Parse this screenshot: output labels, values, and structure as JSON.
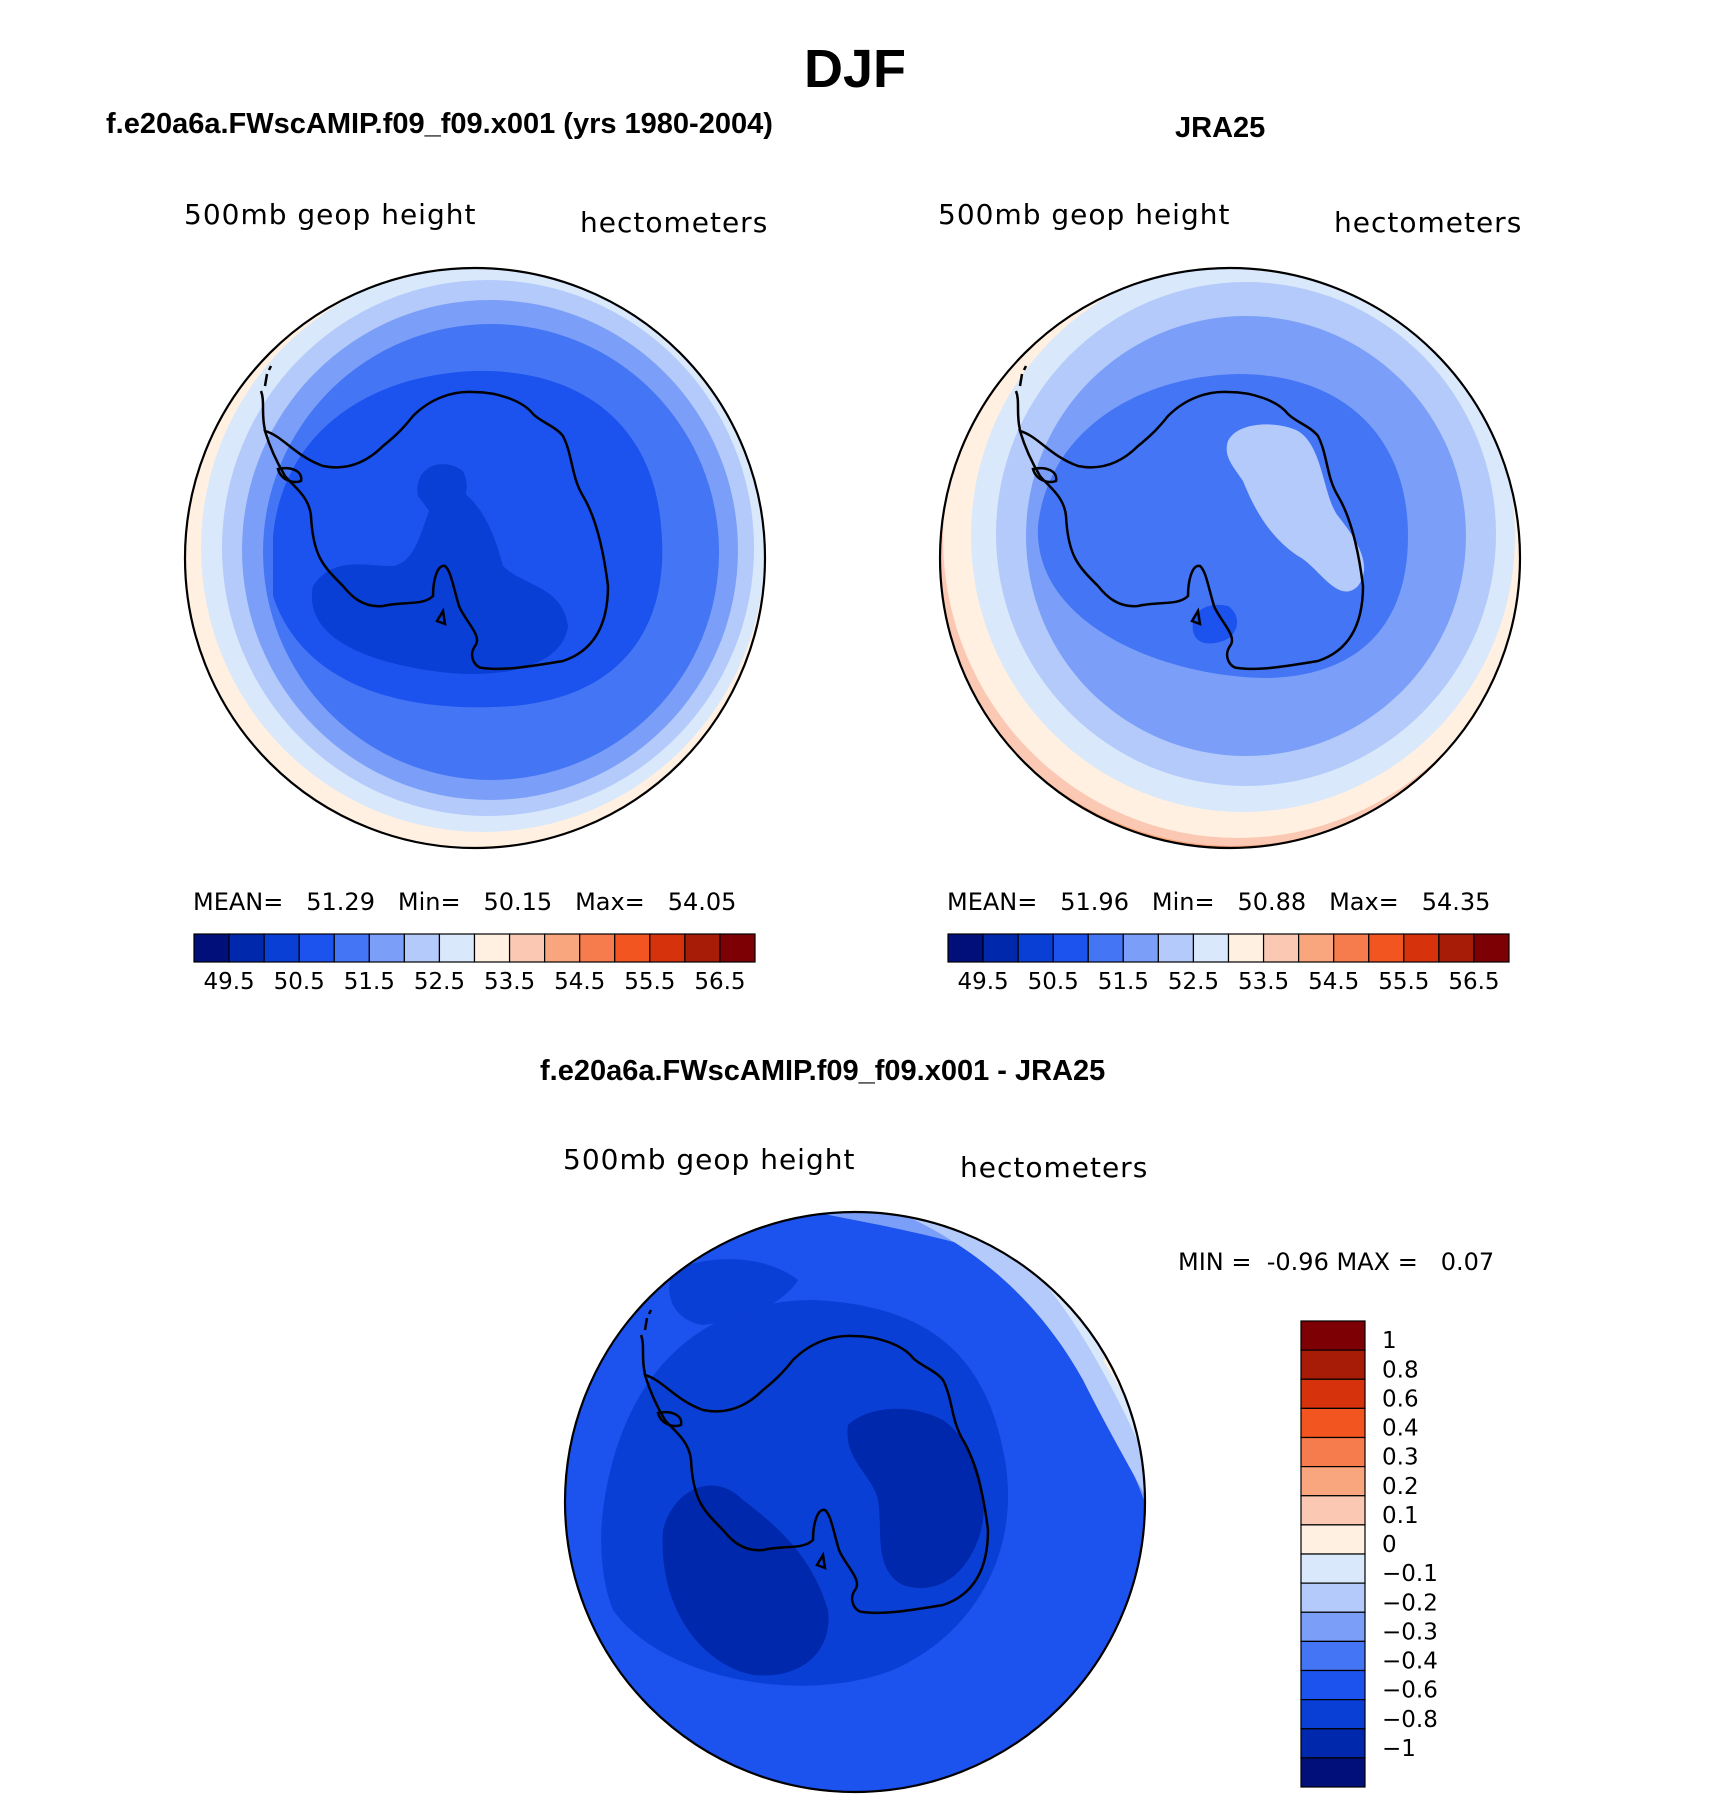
{
  "title": "DJF",
  "panels": [
    {
      "title": "f.e20a6a.FWscAMIP.f09_f09.x001 (yrs 1980-2004)",
      "variable": "500mb geop height",
      "units": "hectometers",
      "stats": {
        "mean_label": "MEAN=",
        "mean": "51.29",
        "min_label": "Min=",
        "min": "50.15",
        "max_label": "Max=",
        "max": "54.05"
      }
    },
    {
      "title": "JRA25",
      "variable": "500mb geop height",
      "units": "hectometers",
      "stats": {
        "mean_label": "MEAN=",
        "mean": "51.96",
        "min_label": "Min=",
        "min": "50.88",
        "max_label": "Max=",
        "max": "54.35"
      }
    },
    {
      "title": "f.e20a6a.FWscAMIP.f09_f09.x001 - JRA25",
      "variable": "500mb geop height",
      "units": "hectometers",
      "stats": {
        "min_label": "MIN =",
        "min": "-0.96",
        "max_label": "MAX =",
        "max": "0.07"
      }
    }
  ],
  "colorbar_abs": {
    "orientation": "horizontal",
    "colors": [
      "#000f7a",
      "#0028ad",
      "#0a3fd6",
      "#1c52ee",
      "#4475f5",
      "#7b9ff8",
      "#b3cafa",
      "#d9e8fb",
      "#fff0e1",
      "#fbc9b3",
      "#f9a57e",
      "#f77c4d",
      "#f2551f",
      "#d6330c",
      "#a71c06",
      "#7c0004"
    ],
    "labels": [
      "49.5",
      "50.5",
      "51.5",
      "52.5",
      "53.5",
      "54.5",
      "55.5",
      "56.5"
    ]
  },
  "colorbar_diff": {
    "orientation": "vertical",
    "colors": [
      "#7c0004",
      "#a71c06",
      "#d6330c",
      "#f2551f",
      "#f77c4d",
      "#f9a57e",
      "#fbc9b3",
      "#fff0e1",
      "#d9e8fb",
      "#b3cafa",
      "#7b9ff8",
      "#4475f5",
      "#1c52ee",
      "#0a3fd6",
      "#0028ad",
      "#000f7a"
    ],
    "labels": [
      "1",
      "0.8",
      "0.6",
      "0.4",
      "0.3",
      "0.2",
      "0.1",
      "0",
      "-0.1",
      "-0.2",
      "-0.3",
      "-0.4",
      "-0.6",
      "-0.8",
      "-1"
    ]
  }
}
